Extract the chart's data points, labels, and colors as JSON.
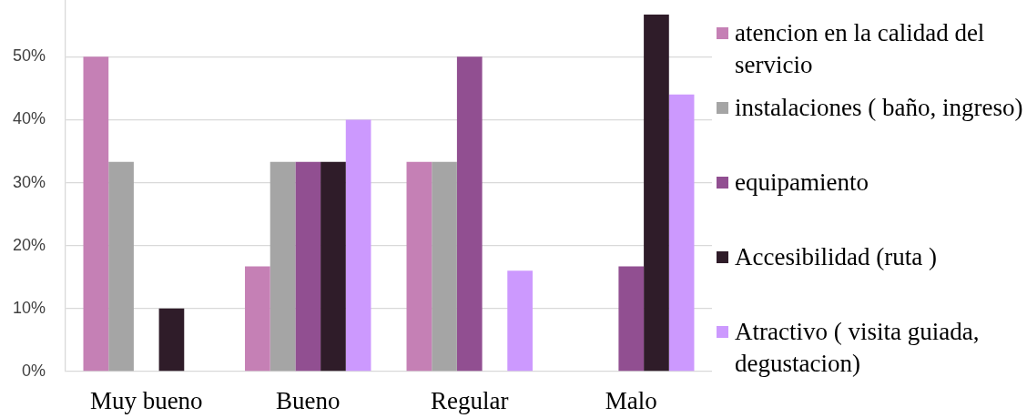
{
  "chart_data": {
    "type": "bar",
    "categories": [
      "Muy bueno",
      "Bueno",
      "Regular",
      "Malo"
    ],
    "series": [
      {
        "name": "atencion en la calidad del servicio",
        "color": "#c580b5",
        "values": [
          50,
          16.7,
          33.3,
          0
        ]
      },
      {
        "name": "instalaciones ( baño, ingreso)",
        "color": "#a5a5a5",
        "values": [
          33.3,
          33.3,
          33.3,
          0
        ]
      },
      {
        "name": "equipamiento",
        "color": "#914f91",
        "values": [
          0,
          33.3,
          50,
          16.7
        ]
      },
      {
        "name": "Accesibilidad (ruta )",
        "color": "#2f1c29",
        "values": [
          10,
          33.3,
          0,
          56.7
        ]
      },
      {
        "name": "Atractivo ( visita guiada, degustacion)",
        "color": "#cc99fe",
        "values": [
          0,
          40,
          16,
          44
        ]
      }
    ],
    "ylim": [
      0,
      59
    ],
    "yticks": [
      {
        "value": 0,
        "label": "0%"
      },
      {
        "value": 10,
        "label": "10%"
      },
      {
        "value": 20,
        "label": "20%"
      },
      {
        "value": 30,
        "label": "30%"
      },
      {
        "value": 40,
        "label": "40%"
      },
      {
        "value": 50,
        "label": "50%"
      }
    ],
    "grid": "y",
    "legend": "right"
  }
}
